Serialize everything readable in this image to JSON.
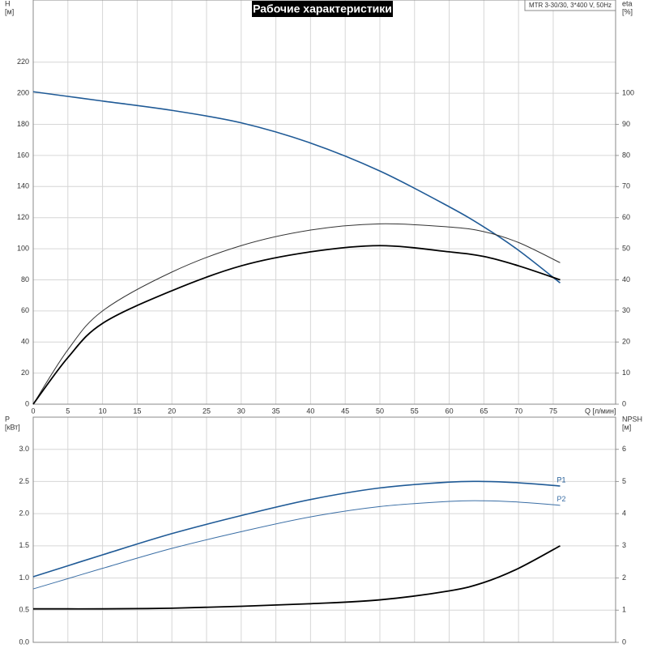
{
  "chart_data": [
    {
      "type": "line",
      "title": "Рабочие характеристики",
      "annotation": "MTR 3-30/30, 3*400 V, 50Hz",
      "y_label": "H",
      "y_unit": "[м]",
      "y2_label": "eta",
      "y2_unit": "[%]",
      "x_label": "Q [л/мин]",
      "x": [
        0,
        5,
        10,
        20,
        30,
        40,
        50,
        60,
        65,
        70,
        76
      ],
      "xlim": [
        0,
        84
      ],
      "xticks": [
        0,
        5,
        10,
        15,
        20,
        25,
        30,
        35,
        40,
        45,
        50,
        55,
        60,
        65,
        70,
        75
      ],
      "ylim": [
        0,
        260
      ],
      "yticks": [
        0,
        20,
        40,
        60,
        80,
        100,
        120,
        140,
        160,
        180,
        200,
        220
      ],
      "y2lim": [
        0,
        130
      ],
      "y2ticks": [
        0,
        10,
        20,
        30,
        40,
        50,
        60,
        70,
        80,
        90,
        100
      ],
      "grid": true,
      "series": [
        {
          "color": "#1f5a96",
          "line_width": 1.6,
          "values": [
            201,
            198,
            195,
            189,
            181,
            168,
            150,
            127,
            114,
            99,
            78
          ]
        },
        {
          "color": "#333333",
          "line_width": 1,
          "axis": "y2",
          "values": [
            0,
            17.5,
            30,
            42.5,
            51,
            56,
            58,
            57,
            55.5,
            52,
            45.5
          ]
        },
        {
          "color": "#000000",
          "line_width": 1.8,
          "axis": "y2",
          "values": [
            0,
            15,
            26,
            36.5,
            44.5,
            49,
            51,
            49,
            47.5,
            44.5,
            40
          ]
        }
      ]
    },
    {
      "type": "line",
      "y_label": "P",
      "y_unit": "[кВт]",
      "y2_label": "NPSH",
      "y2_unit": "[м]",
      "x": [
        0,
        5,
        10,
        20,
        30,
        40,
        50,
        60,
        65,
        70,
        76
      ],
      "xlim": [
        0,
        84
      ],
      "ylim": [
        0,
        3.5
      ],
      "yticks": [
        {
          "value": 0,
          "label": "0.0"
        },
        0.5,
        {
          "value": 1,
          "label": "1.0"
        },
        1.5,
        {
          "value": 2,
          "label": "2.0"
        },
        2.5,
        {
          "value": 3,
          "label": "3.0"
        }
      ],
      "y2lim": [
        0,
        7
      ],
      "y2ticks": [
        0,
        1,
        2,
        3,
        4,
        5,
        6
      ],
      "grid": true,
      "series": [
        {
          "name": "P1",
          "color": "#1f5a96",
          "line_width": 1.6,
          "values": [
            1.02,
            1.19,
            1.36,
            1.69,
            1.97,
            2.22,
            2.4,
            2.49,
            2.5,
            2.48,
            2.43
          ]
        },
        {
          "name": "P2",
          "color": "#3a6ea5",
          "line_width": 1,
          "values": [
            0.83,
            0.99,
            1.15,
            1.46,
            1.72,
            1.95,
            2.11,
            2.19,
            2.2,
            2.18,
            2.13
          ]
        },
        {
          "color": "#000000",
          "line_width": 1.8,
          "axis": "y2",
          "values": [
            1.04,
            1.04,
            1.04,
            1.06,
            1.12,
            1.2,
            1.32,
            1.6,
            1.86,
            2.3,
            3.0
          ]
        }
      ]
    }
  ]
}
